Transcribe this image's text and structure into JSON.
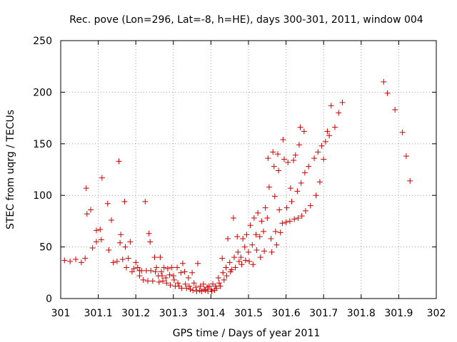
{
  "chart_data": {
    "type": "scatter",
    "title": "Rec. pove (Lon=296, Lat=-8, h=HE), days 300-301, 2011, window 004",
    "xlabel": "GPS time / Days of year 2011",
    "ylabel": "STEC from uqrg / TECUs",
    "xlim": [
      301,
      302
    ],
    "ylim": [
      0,
      250
    ],
    "xticks": [
      301,
      301.1,
      301.2,
      301.3,
      301.4,
      301.5,
      301.6,
      301.7,
      301.8,
      301.9,
      302
    ],
    "xtick_labels": [
      "301",
      "301.1",
      "301.2",
      "301.3",
      "301.4",
      "301.5",
      "301.6",
      "301.7",
      "301.8",
      "301.9",
      "302"
    ],
    "yticks": [
      0,
      50,
      100,
      150,
      200,
      250
    ],
    "ytick_labels": [
      "0",
      "50",
      "100",
      "150",
      "200",
      "250"
    ],
    "grid": true,
    "marker": "+",
    "color": "#cc0000",
    "series": [
      {
        "name": "STEC",
        "points": [
          [
            301.01,
            37
          ],
          [
            301.025,
            36
          ],
          [
            301.04,
            38
          ],
          [
            301.055,
            35
          ],
          [
            301.065,
            39
          ],
          [
            301.068,
            107
          ],
          [
            301.07,
            82
          ],
          [
            301.08,
            86
          ],
          [
            301.085,
            49
          ],
          [
            301.095,
            55
          ],
          [
            301.095,
            66
          ],
          [
            301.105,
            67
          ],
          [
            301.11,
            117
          ],
          [
            301.108,
            57
          ],
          [
            301.125,
            92
          ],
          [
            301.128,
            47
          ],
          [
            301.135,
            76
          ],
          [
            301.14,
            35
          ],
          [
            301.15,
            36
          ],
          [
            301.155,
            133
          ],
          [
            301.158,
            54
          ],
          [
            301.16,
            62
          ],
          [
            301.165,
            38
          ],
          [
            301.17,
            94
          ],
          [
            301.172,
            50
          ],
          [
            301.175,
            30
          ],
          [
            301.18,
            39
          ],
          [
            301.185,
            55
          ],
          [
            301.19,
            26
          ],
          [
            301.195,
            29
          ],
          [
            301.2,
            35
          ],
          [
            301.205,
            30
          ],
          [
            301.21,
            27
          ],
          [
            301.21,
            22
          ],
          [
            301.215,
            27
          ],
          [
            301.22,
            18
          ],
          [
            301.225,
            94
          ],
          [
            301.228,
            27
          ],
          [
            301.232,
            17
          ],
          [
            301.235,
            63
          ],
          [
            301.238,
            55
          ],
          [
            301.24,
            27
          ],
          [
            301.245,
            17
          ],
          [
            301.25,
            40
          ],
          [
            301.252,
            26
          ],
          [
            301.255,
            30
          ],
          [
            301.26,
            22
          ],
          [
            301.262,
            16
          ],
          [
            301.265,
            40
          ],
          [
            301.268,
            26
          ],
          [
            301.27,
            22
          ],
          [
            301.272,
            17
          ],
          [
            301.275,
            30
          ],
          [
            301.28,
            20
          ],
          [
            301.282,
            15
          ],
          [
            301.285,
            29
          ],
          [
            301.29,
            23
          ],
          [
            301.292,
            13
          ],
          [
            301.295,
            30
          ],
          [
            301.3,
            22
          ],
          [
            301.302,
            18
          ],
          [
            301.305,
            12
          ],
          [
            301.31,
            30
          ],
          [
            301.312,
            15
          ],
          [
            301.315,
            12
          ],
          [
            301.32,
            25
          ],
          [
            301.322,
            10
          ],
          [
            301.325,
            34
          ],
          [
            301.33,
            26
          ],
          [
            301.332,
            14
          ],
          [
            301.335,
            10
          ],
          [
            301.34,
            20
          ],
          [
            301.342,
            12
          ],
          [
            301.345,
            9
          ],
          [
            301.35,
            25
          ],
          [
            301.352,
            8
          ],
          [
            301.355,
            15
          ],
          [
            301.36,
            11
          ],
          [
            301.362,
            7
          ],
          [
            301.365,
            34
          ],
          [
            301.37,
            8
          ],
          [
            301.372,
            12
          ],
          [
            301.375,
            7
          ],
          [
            301.38,
            14
          ],
          [
            301.382,
            9
          ],
          [
            301.385,
            8
          ],
          [
            301.39,
            11
          ],
          [
            301.392,
            7
          ],
          [
            301.395,
            12
          ],
          [
            301.4,
            9
          ],
          [
            301.402,
            7
          ],
          [
            301.405,
            14
          ],
          [
            301.41,
            8
          ],
          [
            301.412,
            12
          ],
          [
            301.415,
            10
          ],
          [
            301.42,
            20
          ],
          [
            301.422,
            15
          ],
          [
            301.425,
            12
          ],
          [
            301.43,
            39
          ],
          [
            301.432,
            25
          ],
          [
            301.435,
            18
          ],
          [
            301.44,
            30
          ],
          [
            301.442,
            22
          ],
          [
            301.445,
            58
          ],
          [
            301.45,
            35
          ],
          [
            301.452,
            26
          ],
          [
            301.455,
            28
          ],
          [
            301.46,
            78
          ],
          [
            301.462,
            40
          ],
          [
            301.465,
            30
          ],
          [
            301.47,
            60
          ],
          [
            301.472,
            45
          ],
          [
            301.475,
            36
          ],
          [
            301.48,
            40
          ],
          [
            301.482,
            33
          ],
          [
            301.485,
            58
          ],
          [
            301.49,
            50
          ],
          [
            301.492,
            37
          ],
          [
            301.495,
            62
          ],
          [
            301.5,
            45
          ],
          [
            301.502,
            36
          ],
          [
            301.505,
            71
          ],
          [
            301.51,
            52
          ],
          [
            301.512,
            33
          ],
          [
            301.515,
            78
          ],
          [
            301.52,
            62
          ],
          [
            301.522,
            47
          ],
          [
            301.525,
            83
          ],
          [
            301.53,
            60
          ],
          [
            301.532,
            40
          ],
          [
            301.535,
            75
          ],
          [
            301.54,
            65
          ],
          [
            301.542,
            46
          ],
          [
            301.545,
            88
          ],
          [
            301.55,
            78
          ],
          [
            301.552,
            136
          ],
          [
            301.555,
            108
          ],
          [
            301.56,
            58
          ],
          [
            301.562,
            45
          ],
          [
            301.565,
            142
          ],
          [
            301.568,
            128
          ],
          [
            301.57,
            99
          ],
          [
            301.572,
            65
          ],
          [
            301.575,
            52
          ],
          [
            301.578,
            140
          ],
          [
            301.58,
            124
          ],
          [
            301.582,
            86
          ],
          [
            301.585,
            64
          ],
          [
            301.59,
            73
          ],
          [
            301.592,
            154
          ],
          [
            301.595,
            135
          ],
          [
            301.6,
            74
          ],
          [
            301.602,
            88
          ],
          [
            301.605,
            132
          ],
          [
            301.61,
            75
          ],
          [
            301.612,
            107
          ],
          [
            301.615,
            94
          ],
          [
            301.62,
            134
          ],
          [
            301.622,
            77
          ],
          [
            301.625,
            139
          ],
          [
            301.63,
            104
          ],
          [
            301.632,
            78
          ],
          [
            301.635,
            149
          ],
          [
            301.638,
            166
          ],
          [
            301.64,
            112
          ],
          [
            301.642,
            80
          ],
          [
            301.648,
            162
          ],
          [
            301.65,
            122
          ],
          [
            301.652,
            85
          ],
          [
            301.66,
            128
          ],
          [
            301.665,
            90
          ],
          [
            301.675,
            136
          ],
          [
            301.68,
            100
          ],
          [
            301.685,
            142
          ],
          [
            301.69,
            113
          ],
          [
            301.695,
            148
          ],
          [
            301.7,
            135
          ],
          [
            301.705,
            152
          ],
          [
            301.71,
            162
          ],
          [
            301.715,
            158
          ],
          [
            301.72,
            187
          ],
          [
            301.73,
            166
          ],
          [
            301.74,
            180
          ],
          [
            301.75,
            190
          ],
          [
            301.86,
            210
          ],
          [
            301.87,
            199
          ],
          [
            301.89,
            183
          ],
          [
            301.91,
            161
          ],
          [
            301.92,
            138
          ],
          [
            301.93,
            114
          ]
        ]
      }
    ]
  }
}
